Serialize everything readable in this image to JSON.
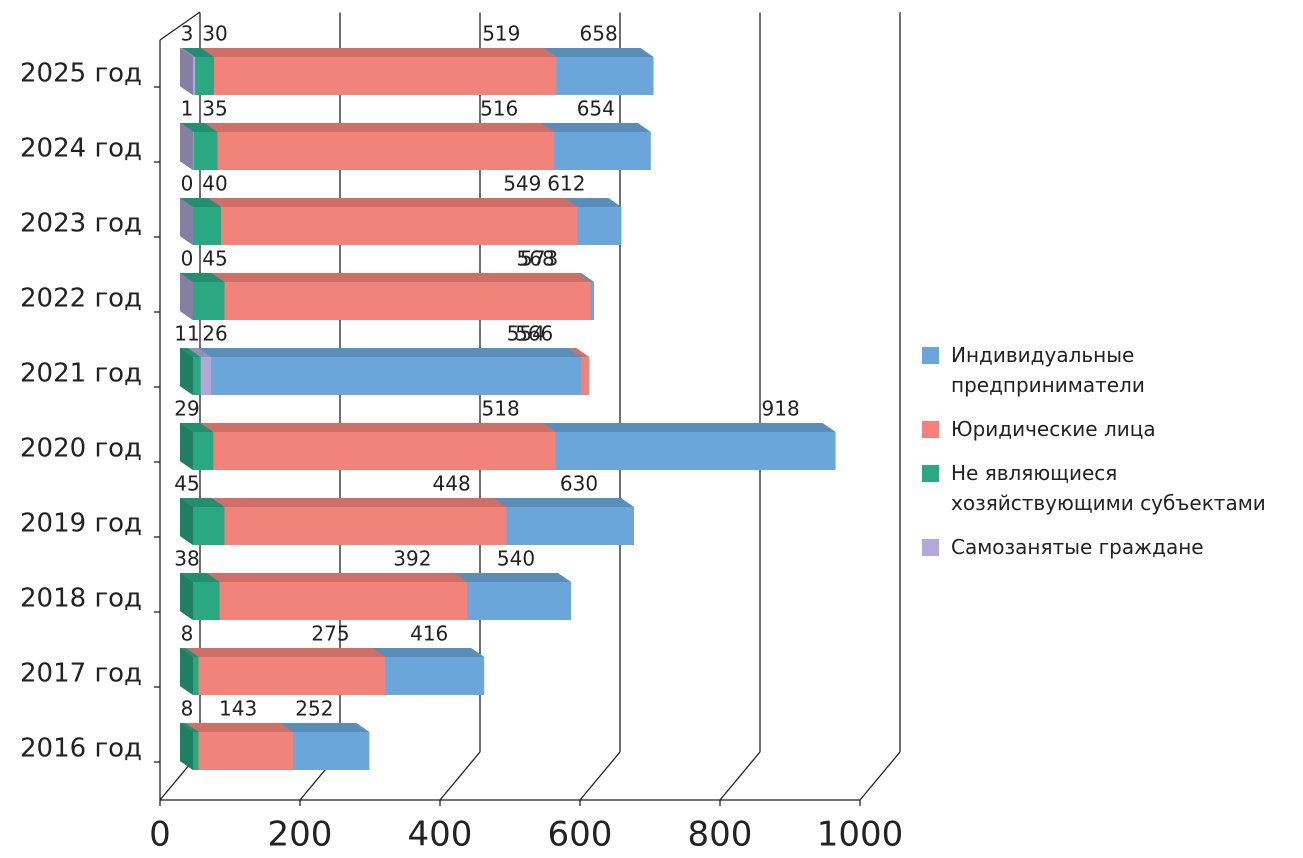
{
  "chart_data": {
    "type": "bar",
    "orientation": "horizontal",
    "three_d": true,
    "categories": [
      "2025 год",
      "2024 год",
      "2023 год",
      "2022 год",
      "2021 год",
      "2020 год",
      "2019 год",
      "2018 год",
      "2017 год",
      "2016 год"
    ],
    "series": [
      {
        "name": "Индивидуальные предприниматели",
        "color": "#6aa6d9",
        "values": [
          658,
          654,
          612,
          573,
          554,
          918,
          630,
          540,
          416,
          252
        ]
      },
      {
        "name": "Юридические лица",
        "color": "#f2837a",
        "values": [
          519,
          516,
          549,
          568,
          566,
          518,
          448,
          392,
          275,
          143
        ]
      },
      {
        "name": "Не являющиеся хозяйствующими субъектами",
        "color": "#2aa882",
        "values": [
          30,
          35,
          40,
          45,
          11,
          29,
          45,
          38,
          8,
          8
        ]
      },
      {
        "name": "Самозанятые граждане",
        "color": "#b2a9da",
        "values": [
          3,
          1,
          0,
          0,
          26,
          null,
          null,
          null,
          null,
          null
        ]
      }
    ],
    "xlim": [
      0,
      1000
    ],
    "xticks": [
      0,
      200,
      400,
      600,
      800,
      1000
    ],
    "grid": true
  }
}
